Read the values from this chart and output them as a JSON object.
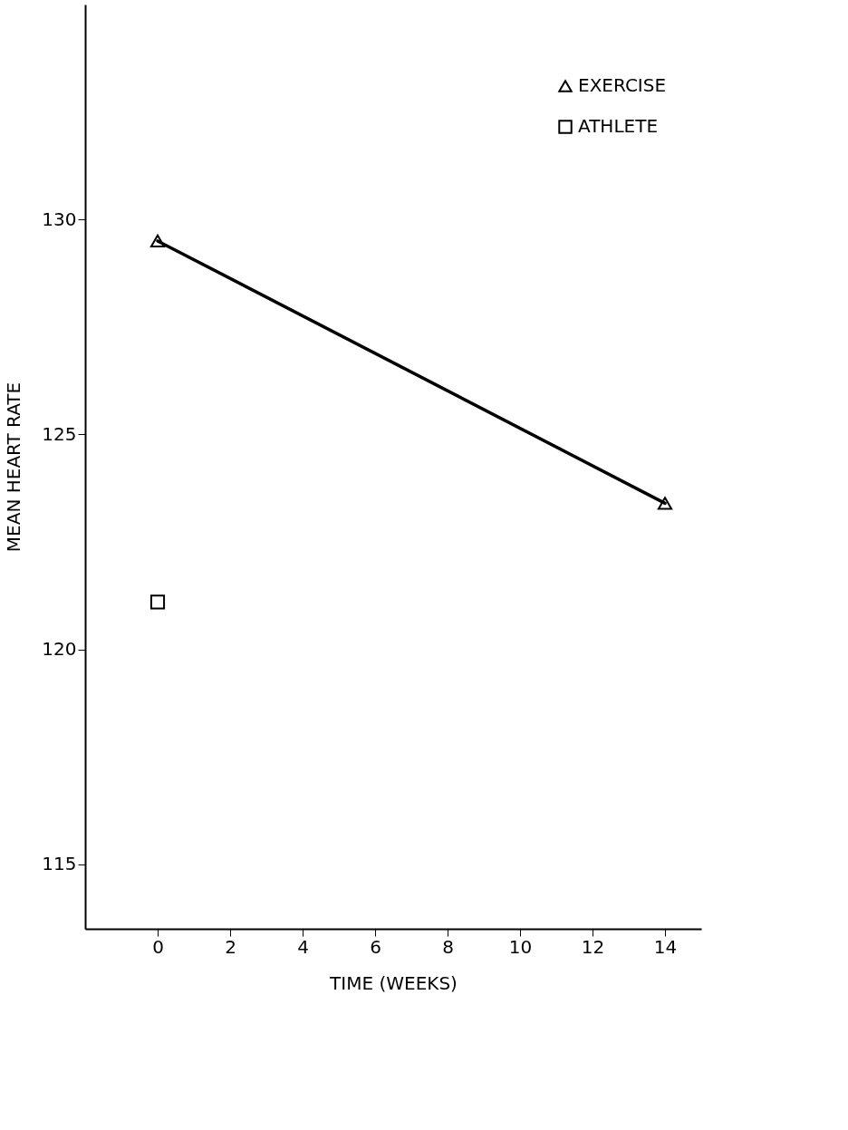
{
  "chart_data": {
    "type": "line",
    "xlabel": "TIME (WEEKS)",
    "ylabel": "MEAN HEART RATE",
    "series": [
      {
        "name": "EXERCISE",
        "color": "#000000",
        "marker": "triangle",
        "values": [
          129.5,
          123.4
        ]
      },
      {
        "name": "ATHLETE",
        "type": "scatter",
        "color": "#000000",
        "marker": "square",
        "x": [
          0
        ],
        "values": [
          121.1
        ]
      }
    ],
    "x": [
      0,
      14
    ],
    "xlim": [
      -2,
      15
    ],
    "xticks": [
      0,
      2,
      4,
      6,
      8,
      10,
      12,
      14
    ],
    "ylim": [
      113.5,
      135
    ],
    "yticks": [
      115,
      120,
      125,
      130
    ],
    "grid": false,
    "legend": "top right"
  }
}
